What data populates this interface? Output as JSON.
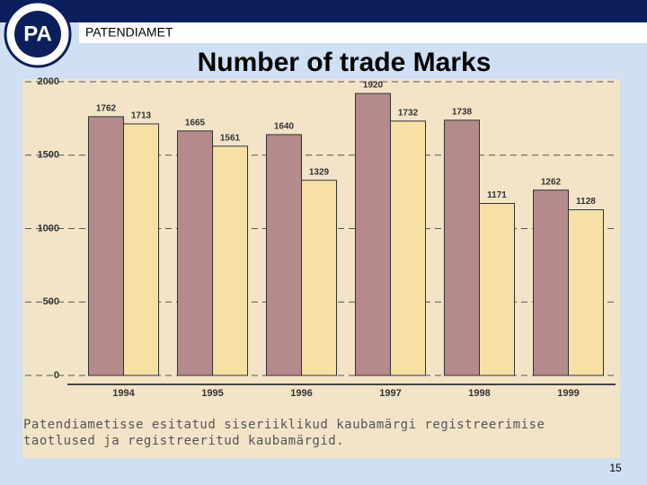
{
  "header": "PATENDIAMET",
  "page_number": "15",
  "chart_data": {
    "type": "bar",
    "title": "Number of trade Marks",
    "caption": "Patendiametisse esitatud siseriiklikud kaubamärgi registreerimise taotlused ja registreeritud kaubamärgid.",
    "categories": [
      "1994",
      "1995",
      "1996",
      "1997",
      "1998",
      "1999"
    ],
    "series": [
      {
        "color": "#b58a8b",
        "values": [
          1762,
          1665,
          1640,
          1920,
          1738,
          1262
        ]
      },
      {
        "color": "#f6e0a4",
        "values": [
          1713,
          1561,
          1329,
          1732,
          1171,
          1128
        ]
      }
    ],
    "ylim": [
      0,
      2000
    ],
    "yticks": [
      0,
      500,
      1000,
      1500,
      2000
    ],
    "grid": true
  }
}
